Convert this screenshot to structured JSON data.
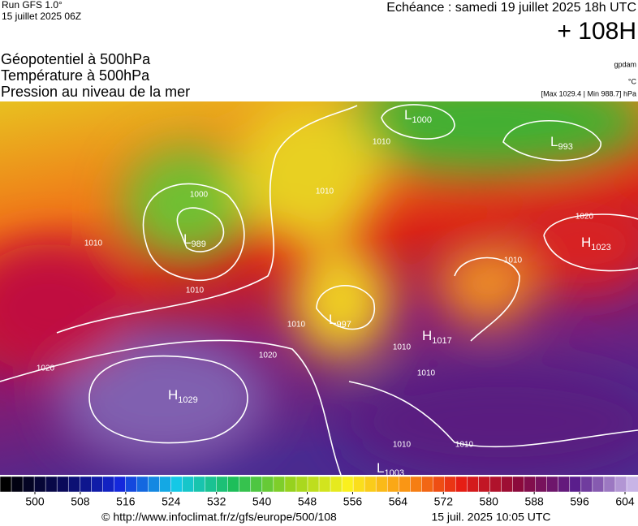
{
  "header": {
    "run": "Run GFS 1.0°",
    "run_date": "15 juillet 2025 06Z",
    "echeance": "Echéance : samedi 19 juillet 2025 18h UTC",
    "lead": "+ 108H",
    "unit_gpdam": "gpdam",
    "unit_c": "°C",
    "pressure_range": "[Max 1029.4 | Min 988.7] hPa"
  },
  "titles": [
    "Géopotentiel à 500hPa",
    "Température à 500hPa",
    "Pression au niveau de la mer"
  ],
  "centers": [
    {
      "type": "L",
      "value": "1000"
    },
    {
      "type": "L",
      "value": "993"
    },
    {
      "type": "L",
      "value": "989"
    },
    {
      "type": "H",
      "value": "1023"
    },
    {
      "type": "L",
      "value": "997"
    },
    {
      "type": "H",
      "value": "1017"
    },
    {
      "type": "H",
      "value": "1029"
    },
    {
      "type": "L",
      "value": "1003"
    }
  ],
  "isobar_labels": [
    "1010",
    "1000",
    "1010",
    "1010",
    "1020",
    "1010",
    "1010",
    "1020",
    "1020",
    "1010",
    "1010",
    "1010",
    "1010",
    "1010"
  ],
  "colorbar": {
    "ticks": [
      500,
      508,
      516,
      524,
      532,
      540,
      548,
      556,
      564,
      572,
      580,
      588,
      596,
      604
    ]
  },
  "footer": {
    "url": "© http://www.infoclimat.fr/z/gfs/europe/500/108",
    "date": "15 juil. 2025 10:05 UTC"
  }
}
